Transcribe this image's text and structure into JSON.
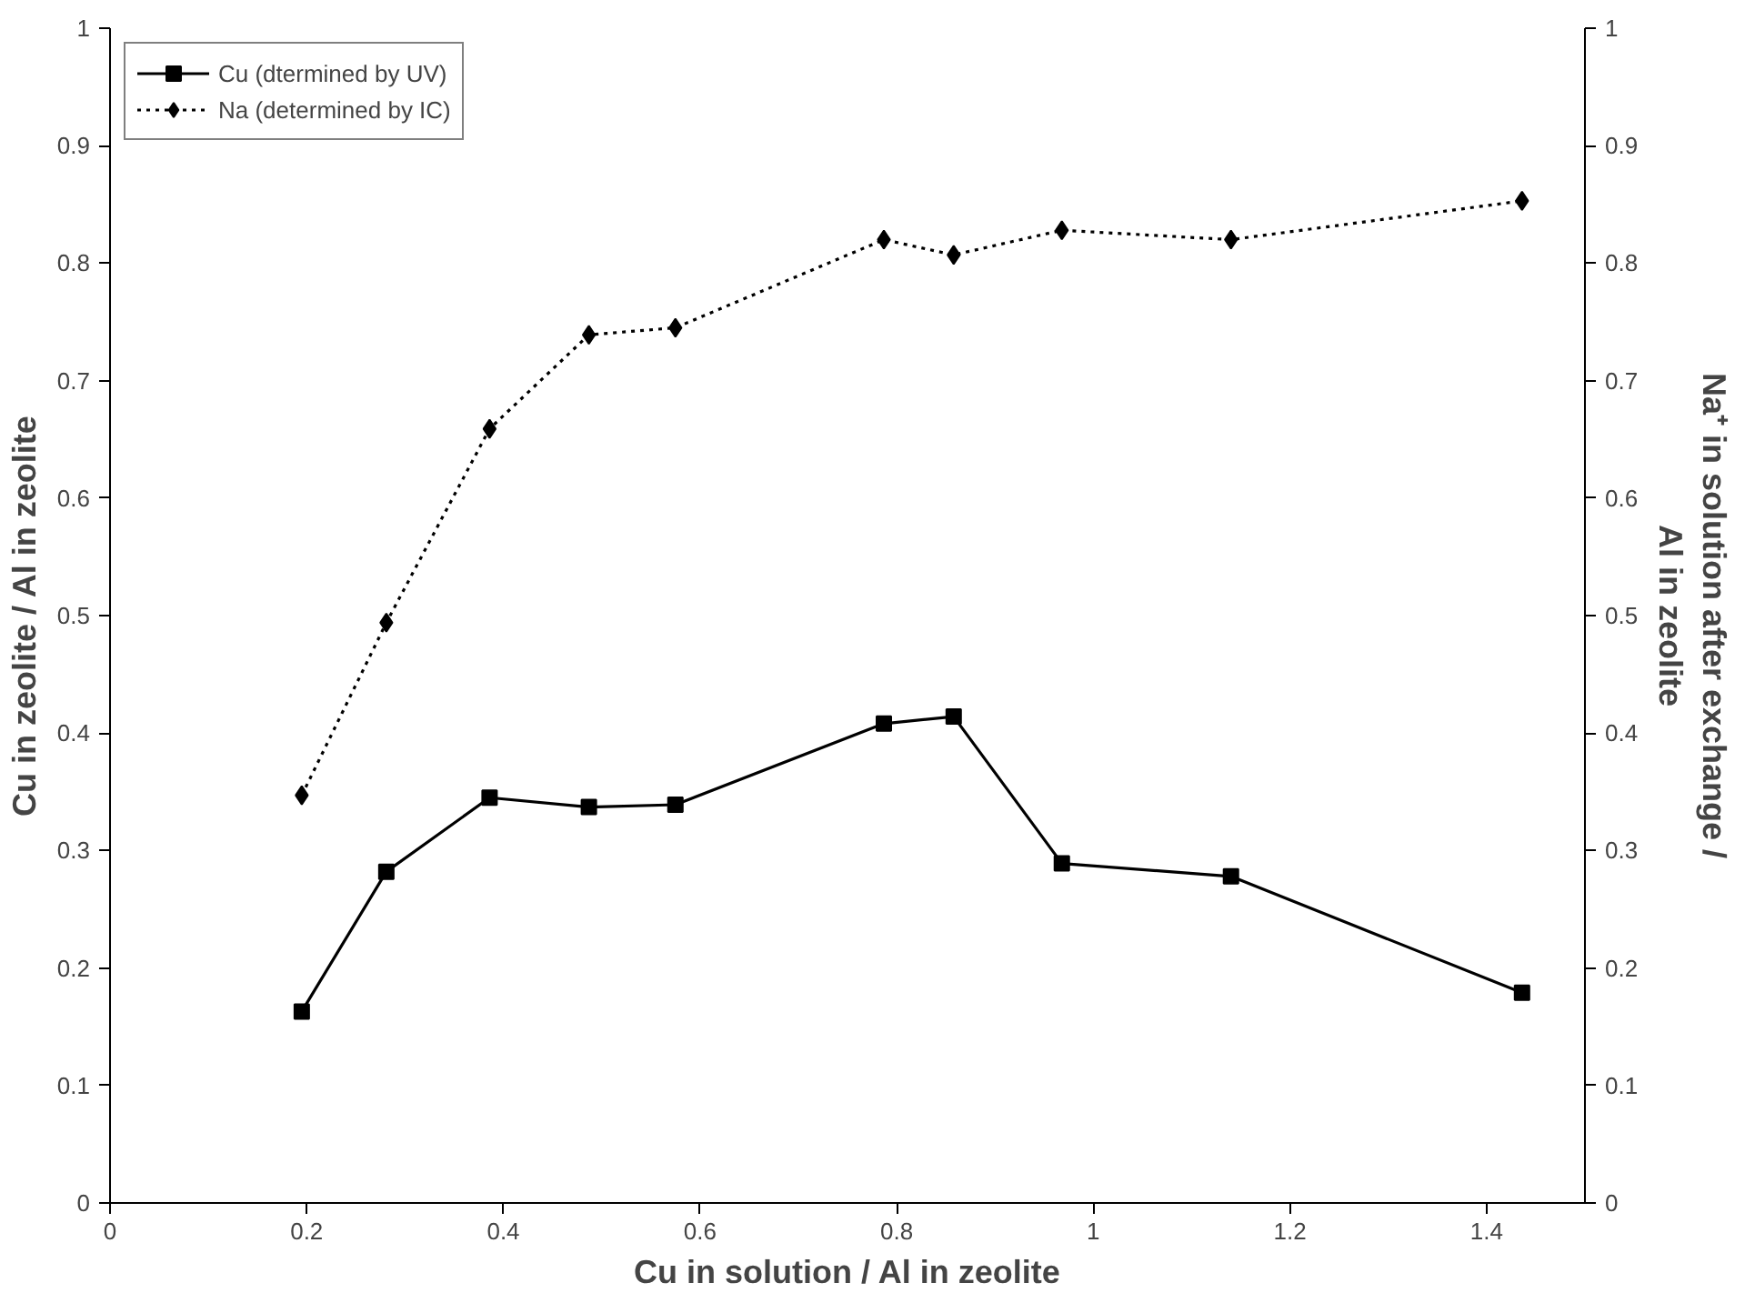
{
  "chart_data": {
    "type": "line",
    "xlabel": "Cu in solution / Al in zeolite",
    "ylabel": "Cu in zeolite / Al in zeolite",
    "y2label": "Na⁺ in solution after exchange /\nAl in zeolite",
    "x": [
      0.195,
      0.281,
      0.386,
      0.487,
      0.575,
      0.787,
      0.858,
      0.968,
      1.14,
      1.436
    ],
    "series": [
      {
        "name": "Cu (dtermined by UV)",
        "color": "#000000",
        "marker": "square",
        "line_style": "solid",
        "values": [
          0.163,
          0.282,
          0.345,
          0.337,
          0.339,
          0.408,
          0.414,
          0.289,
          0.278,
          0.179
        ]
      },
      {
        "name": "Na (determined by IC)",
        "color": "#000000",
        "marker": "diamond",
        "line_style": "dotted",
        "values": [
          0.347,
          0.494,
          0.659,
          0.739,
          0.745,
          0.82,
          0.807,
          0.828,
          0.82,
          0.853
        ]
      }
    ],
    "xlim": [
      0,
      1.5
    ],
    "ylim": [
      0,
      1
    ],
    "y2lim": [
      0,
      1
    ],
    "xticks": [
      0,
      0.2,
      0.4,
      0.6,
      0.8,
      1,
      1.2,
      1.4
    ],
    "yticks": [
      0,
      0.1,
      0.2,
      0.3,
      0.4,
      0.5,
      0.6,
      0.7,
      0.8,
      0.9,
      1
    ],
    "y2ticks": [
      0,
      0.1,
      0.2,
      0.3,
      0.4,
      0.5,
      0.6,
      0.7,
      0.8,
      0.9,
      1
    ],
    "grid": false,
    "legend": "top left"
  }
}
